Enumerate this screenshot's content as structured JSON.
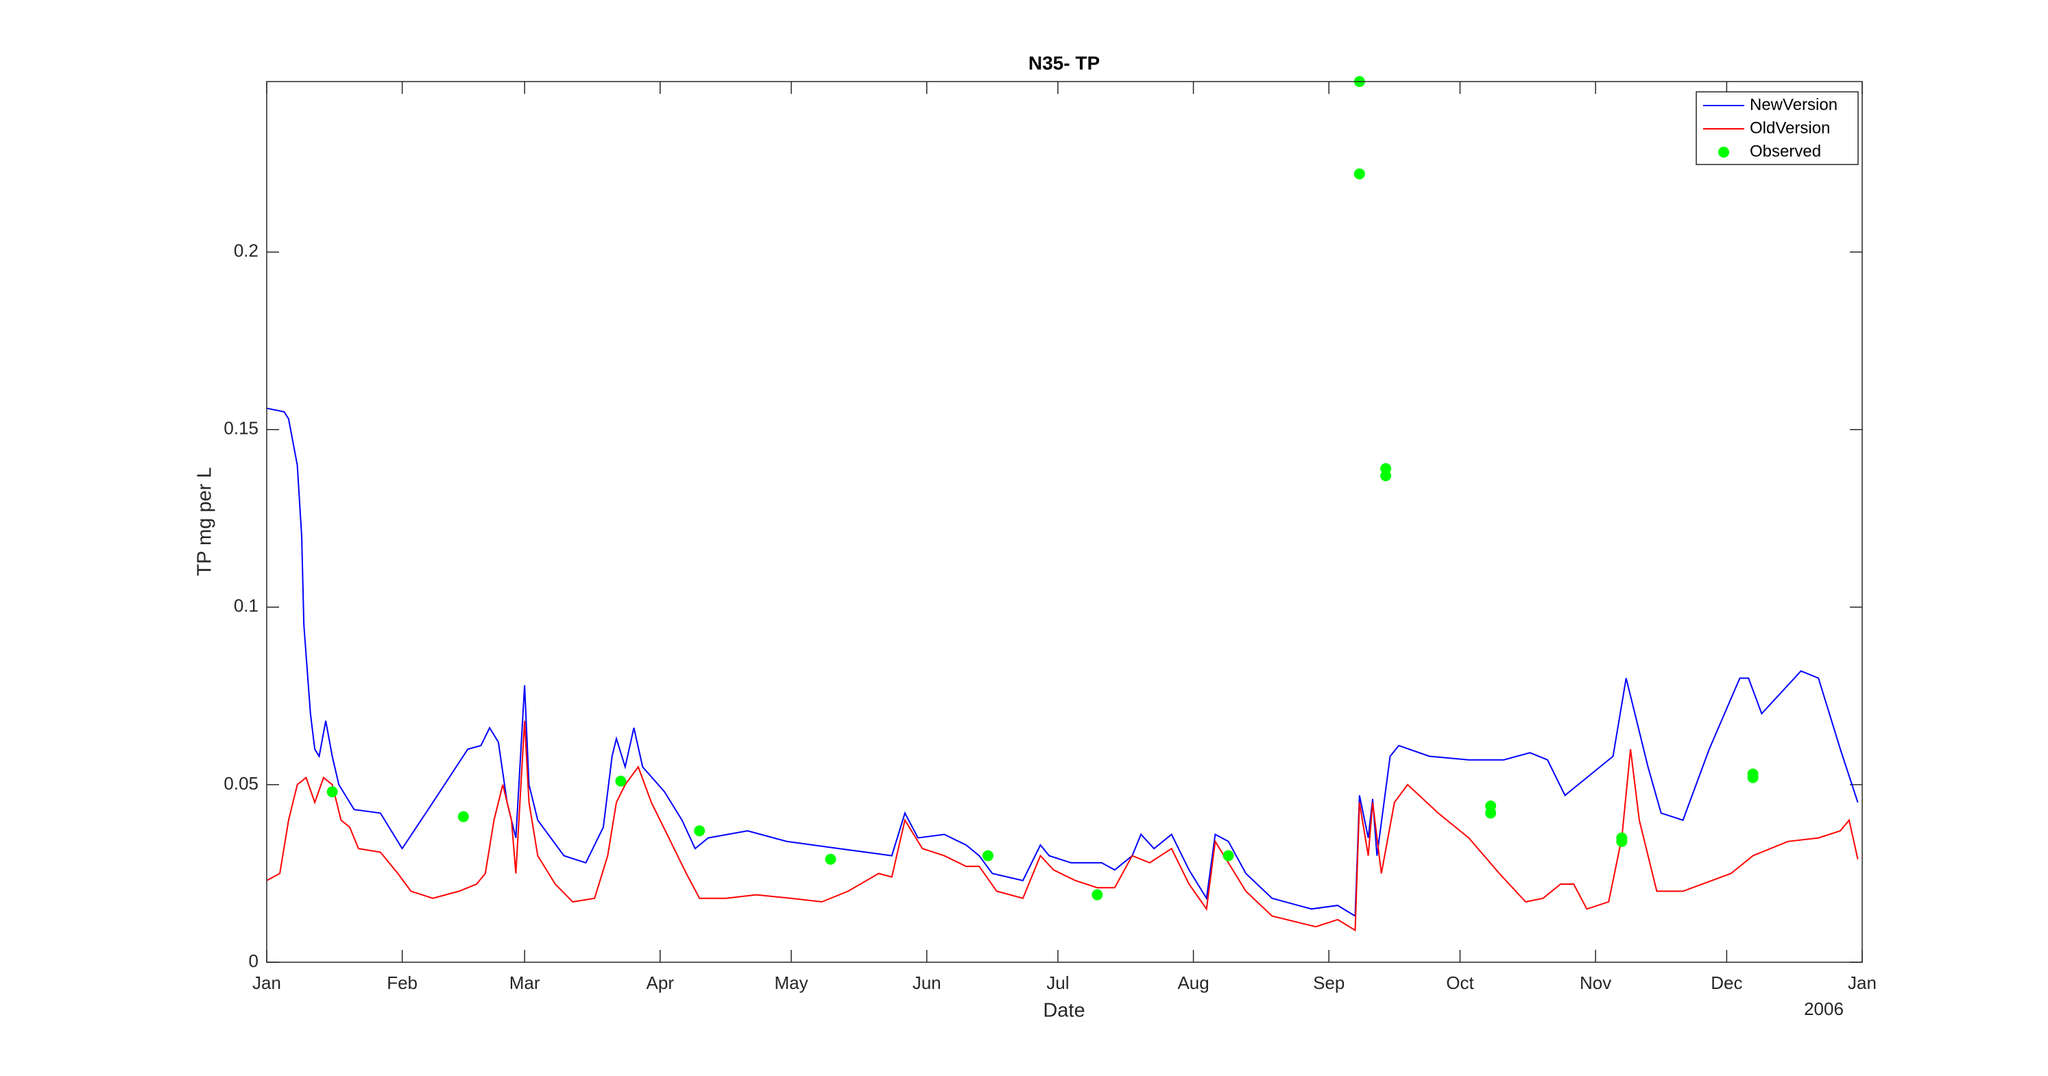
{
  "chart_data": {
    "type": "line",
    "title": "N35- TP",
    "xlabel": "Date",
    "ylabel": "TP mg per L",
    "x_corner_label": "2006",
    "xlim": [
      0,
      365
    ],
    "xticks": [
      {
        "value": 0,
        "label": "Jan"
      },
      {
        "value": 31,
        "label": "Feb"
      },
      {
        "value": 59,
        "label": "Mar"
      },
      {
        "value": 90,
        "label": "Apr"
      },
      {
        "value": 120,
        "label": "May"
      },
      {
        "value": 151,
        "label": "Jun"
      },
      {
        "value": 181,
        "label": "Jul"
      },
      {
        "value": 212,
        "label": "Aug"
      },
      {
        "value": 243,
        "label": "Sep"
      },
      {
        "value": 273,
        "label": "Oct"
      },
      {
        "value": 304,
        "label": "Nov"
      },
      {
        "value": 334,
        "label": "Dec"
      },
      {
        "value": 365,
        "label": "Jan"
      }
    ],
    "ylim": [
      0,
      0.248
    ],
    "yticks": [
      0,
      0.05,
      0.1,
      0.15,
      0.2
    ],
    "legend": "upper right",
    "series": [
      {
        "name": "NewVersion",
        "color": "#0000ff",
        "style": "line",
        "x": [
          0,
          4,
          5,
          7,
          8,
          8.5,
          10,
          11,
          12,
          13.5,
          15,
          16.5,
          19,
          20,
          26,
          31,
          38,
          46,
          49,
          51,
          53,
          55,
          57,
          59,
          60,
          62,
          68,
          73,
          77,
          79,
          80,
          82,
          84,
          86,
          91,
          95,
          98,
          101,
          110,
          119,
          131,
          143,
          146,
          149,
          155,
          160,
          163,
          166,
          173,
          177,
          179,
          184,
          191,
          194,
          198,
          200,
          203,
          207,
          211,
          215,
          217,
          220,
          224,
          230,
          239,
          245,
          249,
          250,
          252,
          253,
          254,
          257,
          259,
          266,
          275,
          283,
          289,
          293,
          297,
          302,
          308,
          311,
          313,
          316,
          319,
          324,
          330,
          337,
          339,
          342,
          345,
          351,
          355,
          360,
          364
        ],
        "values": [
          0.156,
          0.155,
          0.153,
          0.14,
          0.12,
          0.095,
          0.07,
          0.06,
          0.058,
          0.068,
          0.058,
          0.05,
          0.045,
          0.043,
          0.042,
          0.032,
          0.045,
          0.06,
          0.061,
          0.066,
          0.062,
          0.045,
          0.035,
          0.078,
          0.05,
          0.04,
          0.03,
          0.028,
          0.038,
          0.058,
          0.063,
          0.055,
          0.066,
          0.055,
          0.048,
          0.04,
          0.032,
          0.035,
          0.037,
          0.034,
          0.032,
          0.03,
          0.042,
          0.035,
          0.036,
          0.033,
          0.03,
          0.025,
          0.023,
          0.033,
          0.03,
          0.028,
          0.028,
          0.026,
          0.03,
          0.036,
          0.032,
          0.036,
          0.026,
          0.018,
          0.036,
          0.034,
          0.025,
          0.018,
          0.015,
          0.016,
          0.013,
          0.047,
          0.035,
          0.046,
          0.03,
          0.058,
          0.061,
          0.058,
          0.057,
          0.057,
          0.059,
          0.057,
          0.047,
          0.052,
          0.058,
          0.08,
          0.07,
          0.055,
          0.042,
          0.04,
          0.06,
          0.08,
          0.08,
          0.07,
          0.074,
          0.082,
          0.08,
          0.06,
          0.045
        ]
      },
      {
        "name": "OldVersion",
        "color": "#ff0000",
        "style": "line",
        "x": [
          0,
          3,
          5,
          7,
          9,
          11,
          13,
          15,
          17,
          19,
          21,
          26,
          30,
          33,
          38,
          44,
          48,
          50,
          52,
          54,
          56,
          57,
          59,
          60,
          62,
          66,
          70,
          75,
          78,
          80,
          82,
          85,
          88,
          92,
          96,
          99,
          105,
          112,
          120,
          127,
          133,
          140,
          143,
          146,
          150,
          155,
          160,
          163,
          167,
          173,
          177,
          180,
          185,
          190,
          194,
          198,
          202,
          207,
          211,
          215,
          217,
          220,
          224,
          230,
          240,
          245,
          249,
          250,
          252,
          253,
          255,
          258,
          261,
          268,
          275,
          282,
          288,
          292,
          296,
          299,
          302,
          307,
          310,
          312,
          314,
          318,
          324,
          335,
          340,
          348,
          355,
          360,
          362,
          364
        ],
        "values": [
          0.023,
          0.025,
          0.04,
          0.05,
          0.052,
          0.045,
          0.052,
          0.05,
          0.04,
          0.038,
          0.032,
          0.031,
          0.025,
          0.02,
          0.018,
          0.02,
          0.022,
          0.025,
          0.04,
          0.05,
          0.04,
          0.025,
          0.068,
          0.045,
          0.03,
          0.022,
          0.017,
          0.018,
          0.03,
          0.045,
          0.05,
          0.055,
          0.045,
          0.035,
          0.025,
          0.018,
          0.018,
          0.019,
          0.018,
          0.017,
          0.02,
          0.025,
          0.024,
          0.04,
          0.032,
          0.03,
          0.027,
          0.027,
          0.02,
          0.018,
          0.03,
          0.026,
          0.023,
          0.021,
          0.021,
          0.03,
          0.028,
          0.032,
          0.022,
          0.015,
          0.034,
          0.028,
          0.02,
          0.013,
          0.01,
          0.012,
          0.009,
          0.045,
          0.03,
          0.045,
          0.025,
          0.045,
          0.05,
          0.042,
          0.035,
          0.025,
          0.017,
          0.018,
          0.022,
          0.022,
          0.015,
          0.017,
          0.035,
          0.06,
          0.04,
          0.02,
          0.02,
          0.025,
          0.03,
          0.034,
          0.035,
          0.037,
          0.04,
          0.029
        ]
      },
      {
        "name": "Observed",
        "color": "#00ff00",
        "style": "marker",
        "x": [
          15,
          45,
          81,
          99,
          129,
          165,
          190,
          220,
          250,
          250,
          256,
          256,
          280,
          280,
          310,
          310,
          340,
          340
        ],
        "values": [
          0.048,
          0.041,
          0.051,
          0.037,
          0.029,
          0.03,
          0.019,
          0.03,
          0.248,
          0.222,
          0.139,
          0.137,
          0.044,
          0.042,
          0.035,
          0.034,
          0.053,
          0.052
        ]
      }
    ]
  }
}
